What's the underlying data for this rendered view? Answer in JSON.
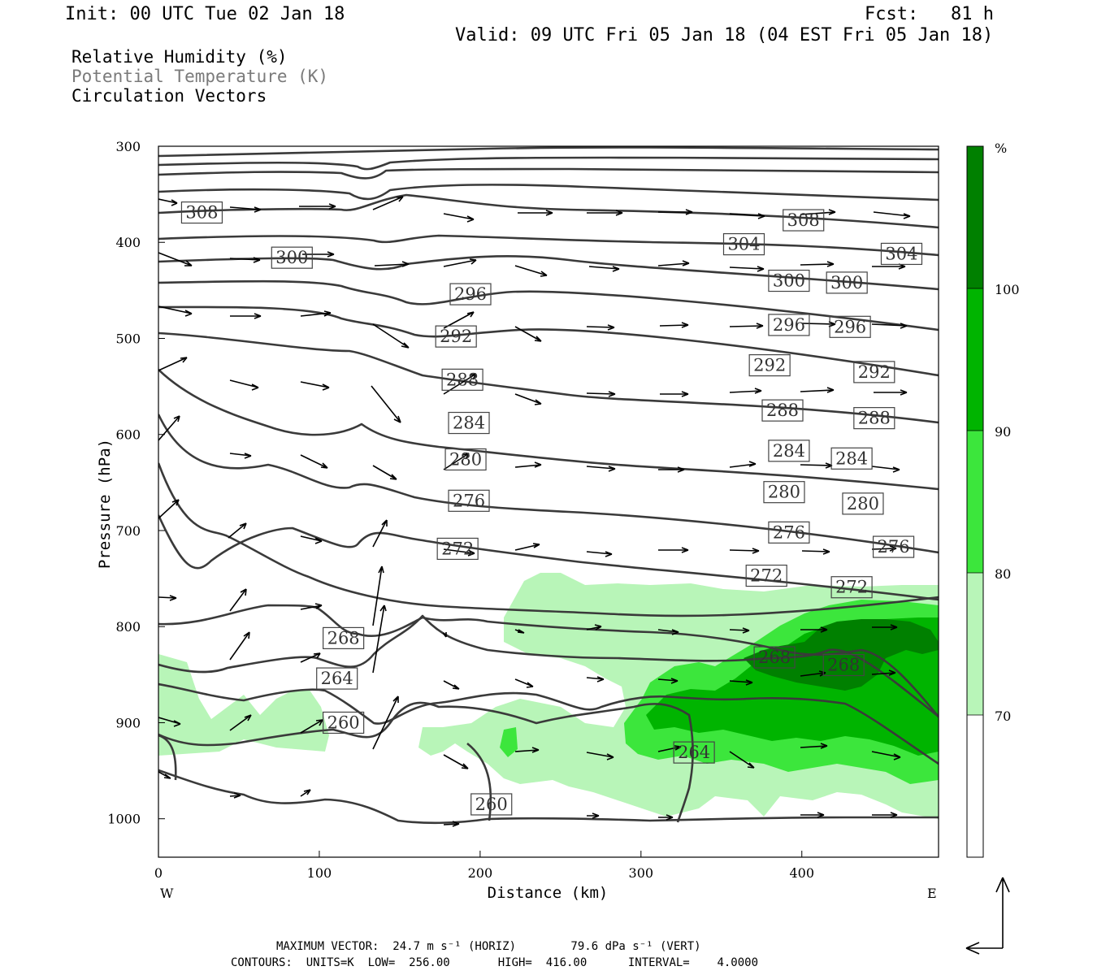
{
  "header": {
    "init": "Init: 00 UTC Tue 02 Jan 18",
    "fcst": "Fcst:   81 h",
    "valid": "Valid: 09 UTC Fri 05 Jan 18 (04 EST Fri 05 Jan 18)"
  },
  "legend": {
    "rh": "Relative Humidity (%)",
    "theta": "Potential Temperature (K)",
    "vectors": "Circulation Vectors"
  },
  "footer": {
    "line1": "MAXIMUM VECTOR:  24.7 m s⁻¹ (HORIZ)        79.6 dPa s⁻¹ (VERT)",
    "line2": "CONTOURS:  UNITS=K  LOW=  256.00       HIGH=  416.00      INTERVAL=    4.0000"
  },
  "colors": {
    "rh70": "#b8f5b8",
    "rh80": "#3ce63c",
    "rh90": "#00b400",
    "rh100": "#008000",
    "contour": "#3a3a3a"
  },
  "chart_data": {
    "type": "cross-section",
    "xlabel": "Distance (km)",
    "ylabel": "Pressure (hPa)",
    "x_ticks": [
      "0",
      "100",
      "200",
      "300",
      "400"
    ],
    "y_ticks": [
      "300",
      "400",
      "500",
      "600",
      "700",
      "800",
      "900",
      "1000"
    ],
    "xlim": [
      0,
      485
    ],
    "ylim": [
      300,
      1040
    ],
    "y_direction": "down",
    "west_label": "W",
    "east_label": "E",
    "colorbar": {
      "unit": "%",
      "levels": [
        "70",
        "80",
        "90",
        "100"
      ]
    },
    "theta_labels": [
      {
        "text": "308",
        "x": 27,
        "p": 369
      },
      {
        "text": "308",
        "x": 401,
        "p": 377
      },
      {
        "text": "304",
        "x": 364,
        "p": 402
      },
      {
        "text": "304",
        "x": 462,
        "p": 412
      },
      {
        "text": "300",
        "x": 83,
        "p": 416
      },
      {
        "text": "300",
        "x": 392,
        "p": 440
      },
      {
        "text": "300",
        "x": 428,
        "p": 442
      },
      {
        "text": "296",
        "x": 194,
        "p": 454
      },
      {
        "text": "296",
        "x": 392,
        "p": 486
      },
      {
        "text": "296",
        "x": 430,
        "p": 488
      },
      {
        "text": "292",
        "x": 185,
        "p": 498
      },
      {
        "text": "292",
        "x": 380,
        "p": 528
      },
      {
        "text": "292",
        "x": 445,
        "p": 535
      },
      {
        "text": "288",
        "x": 189,
        "p": 543
      },
      {
        "text": "288",
        "x": 388,
        "p": 575
      },
      {
        "text": "288",
        "x": 445,
        "p": 583
      },
      {
        "text": "284",
        "x": 193,
        "p": 588
      },
      {
        "text": "284",
        "x": 392,
        "p": 617
      },
      {
        "text": "284",
        "x": 431,
        "p": 625
      },
      {
        "text": "280",
        "x": 191,
        "p": 626
      },
      {
        "text": "280",
        "x": 389,
        "p": 660
      },
      {
        "text": "280",
        "x": 438,
        "p": 672
      },
      {
        "text": "276",
        "x": 193,
        "p": 669
      },
      {
        "text": "276",
        "x": 392,
        "p": 702
      },
      {
        "text": "276",
        "x": 457,
        "p": 717
      },
      {
        "text": "272",
        "x": 186,
        "p": 719
      },
      {
        "text": "272",
        "x": 378,
        "p": 747
      },
      {
        "text": "272",
        "x": 431,
        "p": 759
      },
      {
        "text": "268",
        "x": 115,
        "p": 812
      },
      {
        "text": "268",
        "x": 383,
        "p": 832
      },
      {
        "text": "268",
        "x": 426,
        "p": 840
      },
      {
        "text": "264",
        "x": 111,
        "p": 854
      },
      {
        "text": "264",
        "x": 333,
        "p": 931
      },
      {
        "text": "260",
        "x": 115,
        "p": 900
      },
      {
        "text": "260",
        "x": 207,
        "p": 985
      }
    ]
  }
}
